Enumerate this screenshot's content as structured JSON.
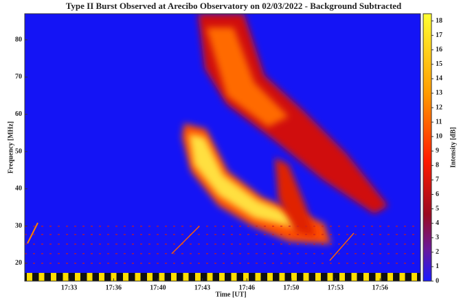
{
  "chart_data": {
    "type": "heatmap",
    "title": "Type II Burst Observed at Arecibo Observatory on 02/03/2022 - Background Subtracted",
    "xlabel": "Time [UT]",
    "ylabel": "Frequency [MHz]",
    "colorbar_label": "Intensity [dB]",
    "xlim": [
      30,
      59.7
    ],
    "xticks": [
      {
        "value": 33.33,
        "label": "17:33"
      },
      {
        "value": 36.67,
        "label": "17:36"
      },
      {
        "value": 40,
        "label": "17:40"
      },
      {
        "value": 43.33,
        "label": "17:43"
      },
      {
        "value": 46.67,
        "label": "17:46"
      },
      {
        "value": 50,
        "label": "17:50"
      },
      {
        "value": 53.33,
        "label": "17:53"
      },
      {
        "value": 56.67,
        "label": "17:56"
      }
    ],
    "ylim": [
      15.2,
      87
    ],
    "yticks": [
      20,
      30,
      40,
      50,
      60,
      70,
      80
    ],
    "clim": [
      0,
      18.5
    ],
    "cticks": [
      0,
      1,
      2,
      3,
      4,
      5,
      6,
      7,
      8,
      9,
      10,
      11,
      12,
      13,
      14,
      15,
      16,
      17,
      18
    ]
  }
}
